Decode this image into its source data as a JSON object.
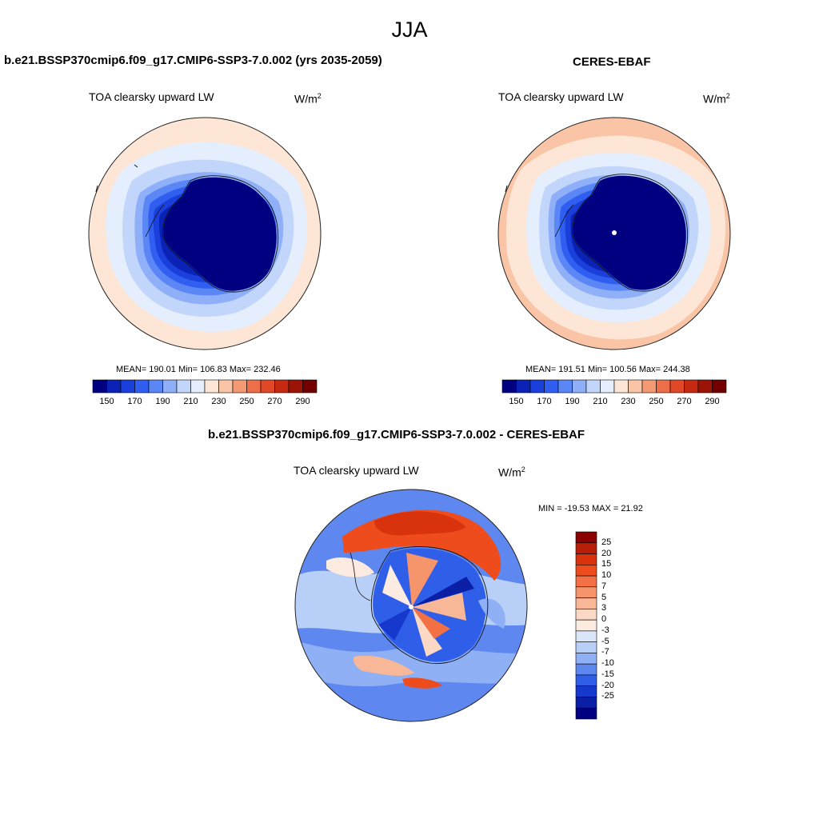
{
  "season": "JJA",
  "panels": [
    {
      "title": "b.e21.BSSP370cmip6.f09_g17.CMIP6-SSP3-7.0.002 (yrs 2035-2059)",
      "field": "TOA clearsky upward LW",
      "units_base": "W/m",
      "units_exp": "2",
      "stats": "MEAN= 190.01  Min= 106.83  Max= 232.46"
    },
    {
      "title": "CERES-EBAF",
      "field": "TOA clearsky upward LW",
      "units_base": "W/m",
      "units_exp": "2",
      "stats": "MEAN= 191.51  Min= 100.56  Max= 244.38"
    }
  ],
  "abs_colorbar": {
    "tick_labels": [
      "150",
      "170",
      "190",
      "210",
      "230",
      "250",
      "270",
      "290"
    ],
    "colors": [
      "#000080",
      "#0a22b5",
      "#1a3fdb",
      "#2f5ef0",
      "#5b86f5",
      "#8fb0f8",
      "#c2d6fb",
      "#e4eefc",
      "#fde6d6",
      "#f9c5a6",
      "#f39a74",
      "#ec6f4a",
      "#e04828",
      "#c62a12",
      "#9a1408",
      "#720000"
    ]
  },
  "diff_panel": {
    "title": "b.e21.BSSP370cmip6.f09_g17.CMIP6-SSP3-7.0.002 - CERES-EBAF",
    "field": "TOA clearsky upward LW",
    "units_base": "W/m",
    "units_exp": "2",
    "stats": "MIN = -19.53 MAX =  21.92"
  },
  "diff_colorbar": {
    "tick_labels": [
      "25",
      "20",
      "15",
      "10",
      "7",
      "5",
      "3",
      "0",
      "-3",
      "-5",
      "-7",
      "-10",
      "-15",
      "-20",
      "-25"
    ],
    "colors": [
      "#8b0000",
      "#b81e08",
      "#d8330c",
      "#ee4c1c",
      "#f37045",
      "#f6946c",
      "#f8b797",
      "#fbd9c5",
      "#fcebe0",
      "#dae7fa",
      "#b8d0f8",
      "#8fb0f5",
      "#5e88f0",
      "#2f5ee8",
      "#1638cc",
      "#0a1fa6",
      "#000080"
    ]
  }
}
